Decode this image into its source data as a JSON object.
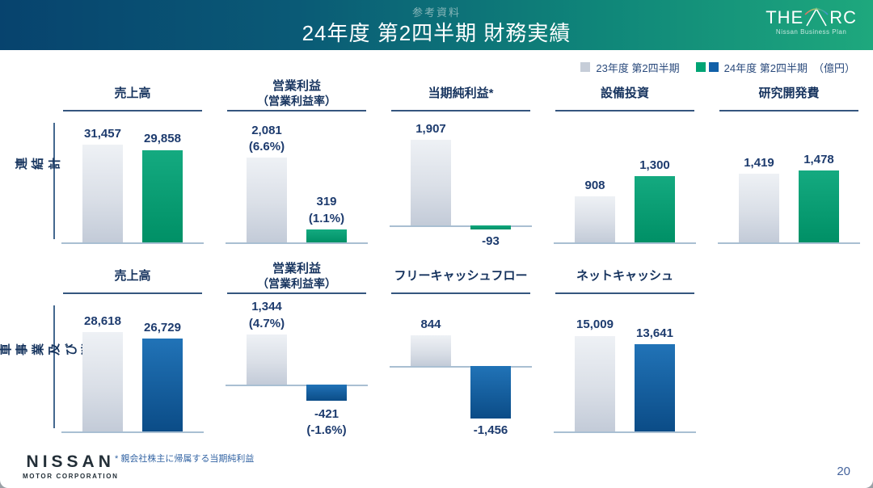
{
  "header": {
    "kicker": "参考資料",
    "title": "24年度 第2四半期 財務実績",
    "logo": {
      "the": "THE",
      "rc": "RC",
      "subtitle": "Nissan Business Plan"
    }
  },
  "legend": {
    "prev_label": "23年度 第2四半期",
    "current_label": "24年度 第2四半期",
    "unit": "（億円）"
  },
  "colors": {
    "prev_bar": "#c9d0db",
    "green": "#00a474",
    "blue": "#1160a8",
    "header_gradient": [
      "#07436e",
      "#1ea87d"
    ],
    "text_navy": "#1d3b6e"
  },
  "chart_data": [
    {
      "group": "連結計",
      "accent": "green",
      "charts": [
        {
          "type": "bar",
          "title": "売上高",
          "ylim": [
            0,
            36000
          ],
          "bars": [
            {
              "label": "31,457",
              "value": 31457
            },
            {
              "label": "29,858",
              "value": 29858
            }
          ]
        },
        {
          "type": "bar",
          "title": "営業利益",
          "subtitle": "（営業利益率）",
          "ylim": [
            0,
            2300
          ],
          "bars": [
            {
              "label": "2,081",
              "sub": "(6.6%)",
              "value": 2081
            },
            {
              "label": "319",
              "sub": "(1.1%)",
              "value": 319
            }
          ]
        },
        {
          "type": "bar",
          "title": "当期純利益*",
          "ylim": [
            -100,
            2100
          ],
          "bars": [
            {
              "label": "1,907",
              "value": 1907
            },
            {
              "label": "-93",
              "value": -93
            }
          ]
        },
        {
          "type": "bar",
          "title": "設備投資",
          "ylim": [
            0,
            2200
          ],
          "bars": [
            {
              "label": "908",
              "value": 908
            },
            {
              "label": "1,300",
              "value": 1300
            }
          ]
        },
        {
          "type": "bar",
          "title": "研究開発費",
          "ylim": [
            0,
            2300
          ],
          "bars": [
            {
              "label": "1,419",
              "value": 1419
            },
            {
              "label": "1,478",
              "value": 1478
            }
          ]
        }
      ]
    },
    {
      "group": "自動車事業\n及び消去",
      "accent": "blue",
      "charts": [
        {
          "type": "bar",
          "title": "売上高",
          "ylim": [
            0,
            34000
          ],
          "bars": [
            {
              "label": "28,618",
              "value": 28618
            },
            {
              "label": "26,729",
              "value": 26729
            }
          ]
        },
        {
          "type": "bar",
          "title": "営業利益",
          "subtitle": "（営業利益率）",
          "ylim": [
            -500,
            1350
          ],
          "bars": [
            {
              "label": "1,344",
              "sub": "(4.7%)",
              "value": 1344
            },
            {
              "label": "-421",
              "sub": "(-1.6%)",
              "value": -421
            }
          ]
        },
        {
          "type": "bar",
          "title": "フリーキャッシュフロー",
          "ylim": [
            -1500,
            1400
          ],
          "bars": [
            {
              "label": "844",
              "value": 844
            },
            {
              "label": "-1,456",
              "value": -1456
            }
          ]
        },
        {
          "type": "bar",
          "title": "ネットキャッシュ",
          "ylim": [
            0,
            18500
          ],
          "bars": [
            {
              "label": "15,009",
              "value": 15009
            },
            {
              "label": "13,641",
              "value": 13641
            }
          ]
        }
      ]
    }
  ],
  "footer": {
    "brand": "NISSAN",
    "brand_sub": "MOTOR CORPORATION",
    "footnote": "* 親会社株主に帰属する当期純利益",
    "page": "20"
  }
}
